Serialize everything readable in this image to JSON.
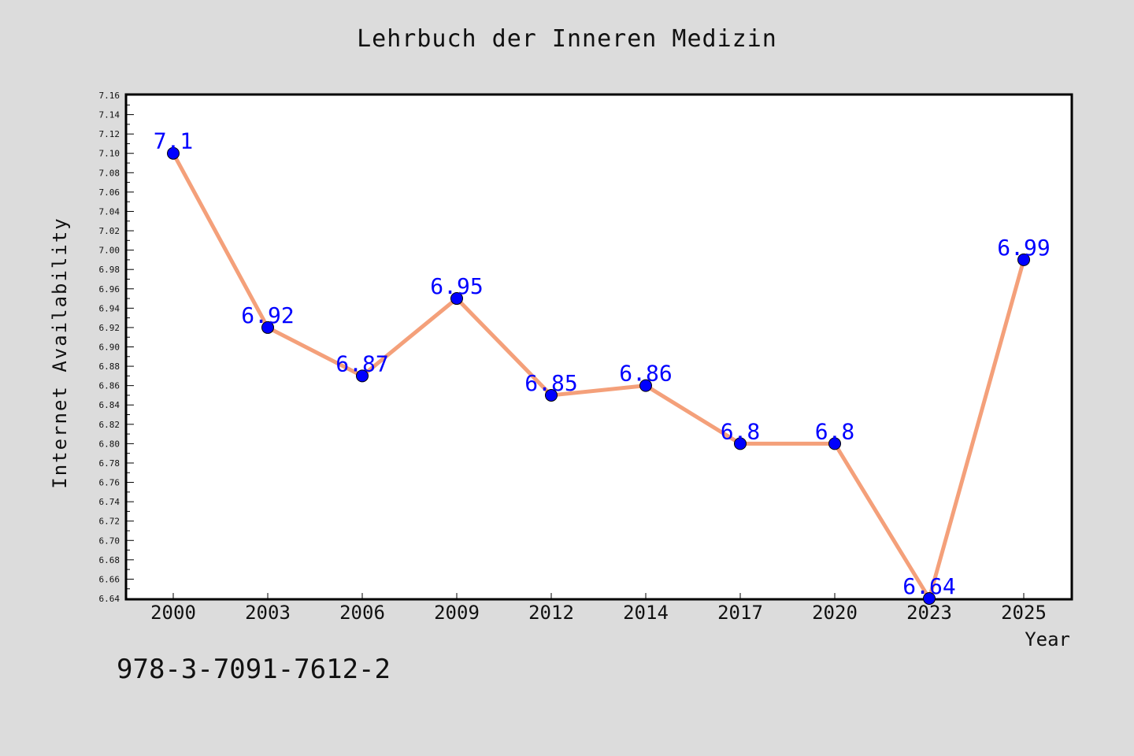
{
  "title": "Lehrbuch der Inneren Medizin",
  "footer": "978-3-7091-7612-2",
  "chart_data": {
    "type": "line",
    "title": "Lehrbuch der Inneren Medizin",
    "xlabel": "Year",
    "ylabel": "Internet Availability",
    "categories": [
      "2000",
      "2003",
      "2006",
      "2009",
      "2012",
      "2014",
      "2017",
      "2020",
      "2023",
      "2025"
    ],
    "values": [
      7.1,
      6.92,
      6.87,
      6.95,
      6.85,
      6.86,
      6.8,
      6.8,
      6.64,
      6.99
    ],
    "data_labels": [
      "7.1",
      "6.92",
      "6.87",
      "6.95",
      "6.85",
      "6.86",
      "6.8",
      "6.8",
      "6.64",
      "6.99"
    ],
    "ylim": [
      6.64,
      7.16
    ],
    "y_tick_step": 0.02,
    "y_tick_labels": [
      "6.64",
      "6.66",
      "6.68",
      "6.70",
      "6.72",
      "6.74",
      "6.76",
      "6.78",
      "6.80",
      "6.82",
      "6.84",
      "6.86",
      "6.88",
      "6.90",
      "6.92",
      "6.94",
      "6.96",
      "6.98",
      "7.00",
      "7.02",
      "7.04",
      "7.06",
      "7.08",
      "7.10",
      "7.12",
      "7.14",
      "7.16"
    ],
    "grid": false,
    "legend": "none",
    "colors": {
      "line": "#f4a07a",
      "marker": "#0000ff",
      "label": "#0000ff",
      "frame": "#000000",
      "plot_background": "#ffffff",
      "page_background": "#dcdcdc"
    }
  }
}
